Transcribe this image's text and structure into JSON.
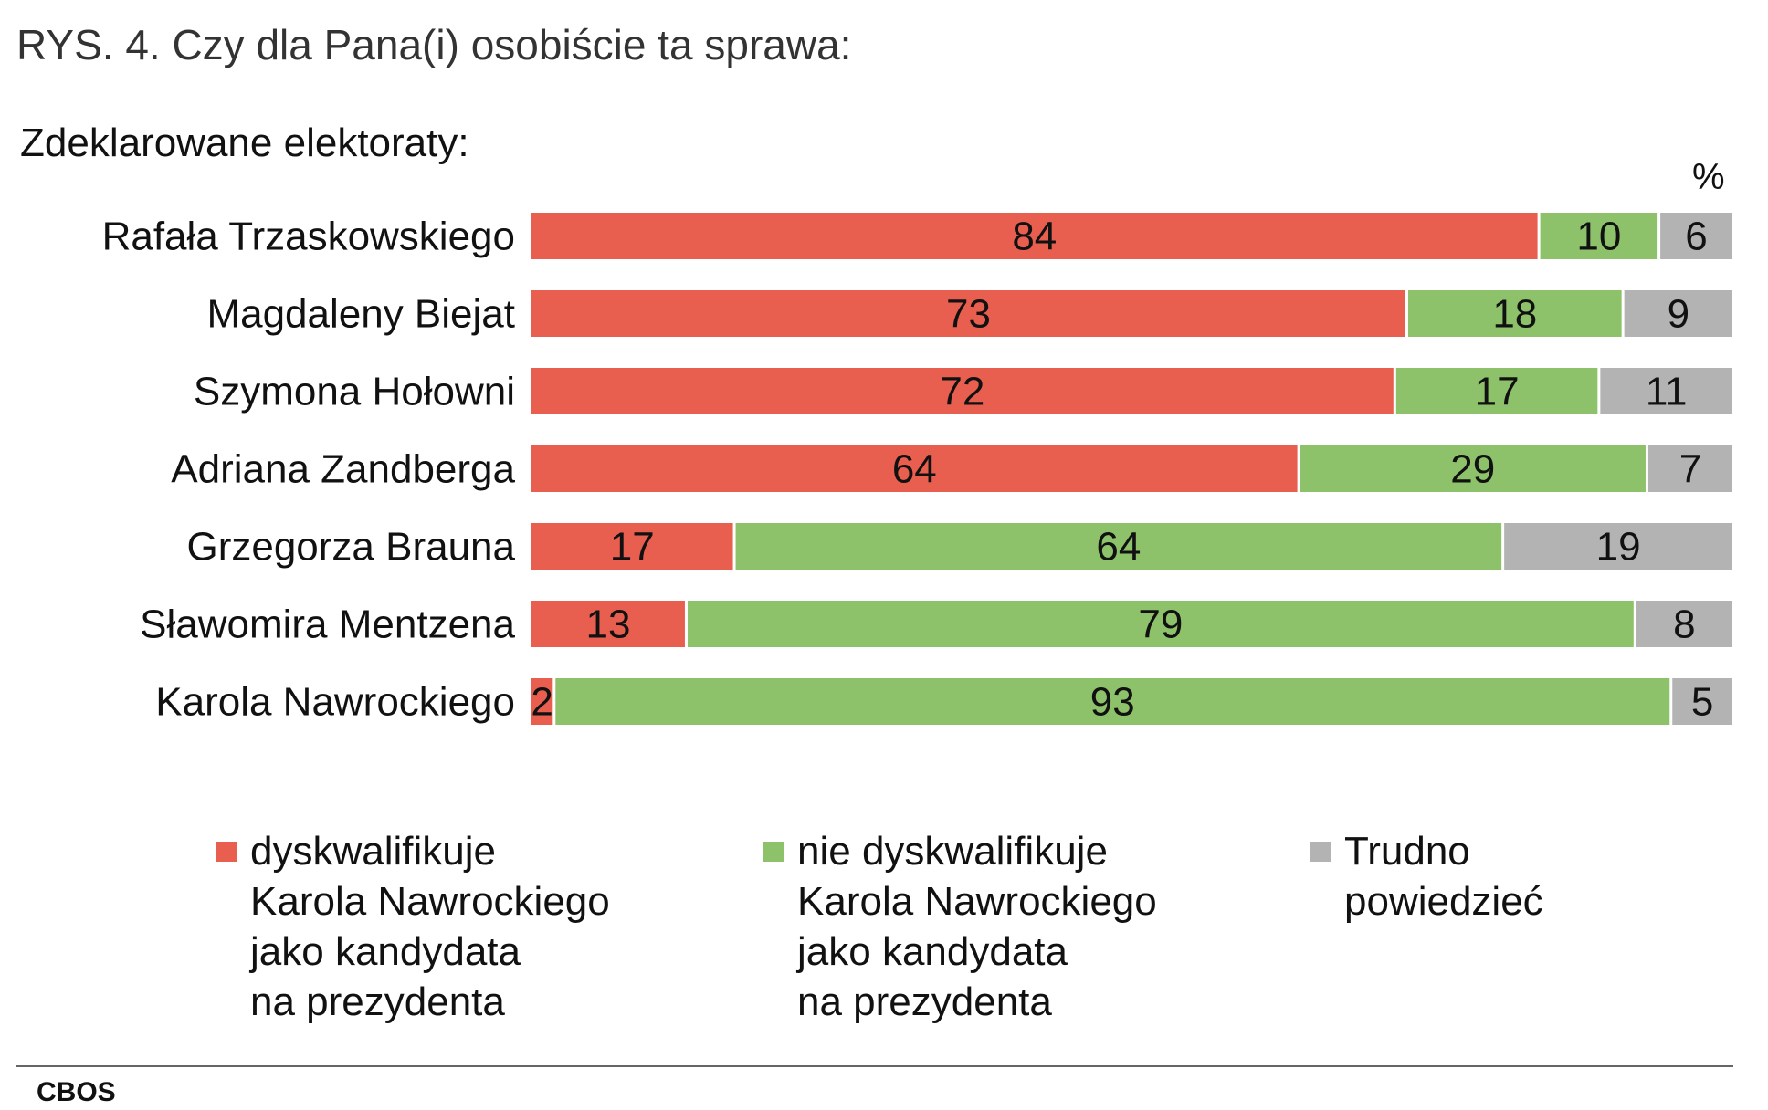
{
  "title": "RYS. 4. Czy dla Pana(i) osobiście ta sprawa:",
  "subtitle": "Zdeklarowane elektoraty:",
  "unit": "%",
  "source": "CBOS",
  "colors": {
    "disqualifies": "#e85f50",
    "not_disqualifies": "#8dc26b",
    "hard_to_say": "#b3b3b3"
  },
  "legend": [
    {
      "label": "dyskwalifikuje\nKarola Nawrockiego\njako kandydata\nna prezydenta",
      "color": "#e85f50"
    },
    {
      "label": "nie dyskwalifikuje\nKarola Nawrockiego\njako kandydata\nna prezydenta",
      "color": "#8dc26b"
    },
    {
      "label": "Trudno\npowiedzieć",
      "color": "#b3b3b3"
    }
  ],
  "chart_data": {
    "type": "bar",
    "orientation": "horizontal",
    "stacked": true,
    "xlim": [
      0,
      100
    ],
    "categories": [
      "Rafała Trzaskowskiego",
      "Magdaleny Biejat",
      "Szymona Hołowni",
      "Adriana Zandberga",
      "Grzegorza Brauna",
      "Sławomira Mentzena",
      "Karola Nawrockiego"
    ],
    "series": [
      {
        "name": "dyskwalifikuje Karola Nawrockiego jako kandydata na prezydenta",
        "color": "#e85f50",
        "values": [
          84,
          73,
          72,
          64,
          17,
          13,
          2
        ]
      },
      {
        "name": "nie dyskwalifikuje Karola Nawrockiego jako kandydata na prezydenta",
        "color": "#8dc26b",
        "values": [
          10,
          18,
          17,
          29,
          64,
          79,
          93
        ]
      },
      {
        "name": "Trudno powiedzieć",
        "color": "#b3b3b3",
        "values": [
          6,
          9,
          11,
          7,
          19,
          8,
          5
        ]
      }
    ]
  }
}
